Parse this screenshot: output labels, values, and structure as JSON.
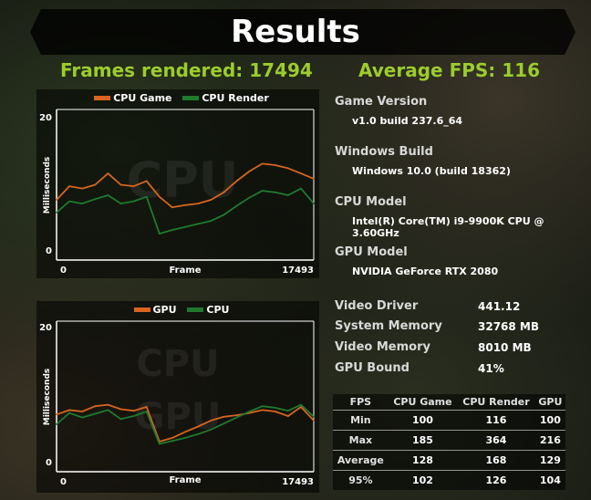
{
  "title": "Results",
  "headline": {
    "frames_rendered": "Frames rendered: 17494",
    "average_fps": "Average FPS: 116"
  },
  "charts": {
    "top": {
      "legend": [
        {
          "label": "CPU Game",
          "color": "#d8641e"
        },
        {
          "label": "CPU Render",
          "color": "#1f7a2e"
        }
      ],
      "watermark": "CPU",
      "ylabel": "Milliseconds",
      "xlabel": "Frame",
      "y_top": "20",
      "y_bottom": "0",
      "x_start": "0",
      "x_end": "17493"
    },
    "bottom": {
      "legend": [
        {
          "label": "GPU",
          "color": "#d8641e"
        },
        {
          "label": "CPU",
          "color": "#1f7a2e"
        }
      ],
      "watermark_1": "CPU",
      "watermark_2": "GPU",
      "ylabel": "Milliseconds",
      "xlabel": "Frame",
      "y_top": "20",
      "y_bottom": "0",
      "x_start": "0",
      "x_end": "17493"
    }
  },
  "chart_data": [
    {
      "type": "line",
      "ylabel": "Milliseconds",
      "xlabel": "Frame",
      "ylim": [
        0,
        20
      ],
      "xlim": [
        0,
        17493
      ],
      "series": [
        {
          "name": "CPU Game",
          "color": "#d8641e",
          "x": [
            0,
            875,
            1750,
            2625,
            3500,
            4375,
            5250,
            6125,
            7000,
            7875,
            8750,
            9625,
            10500,
            11375,
            12250,
            13125,
            14000,
            14875,
            15750,
            16625,
            17493
          ],
          "values": [
            8.0,
            9.8,
            9.5,
            10.0,
            11.5,
            10.0,
            9.8,
            10.5,
            8.4,
            7.0,
            7.3,
            7.5,
            8.0,
            9.0,
            10.5,
            11.8,
            12.8,
            12.6,
            12.2,
            11.5,
            10.8
          ]
        },
        {
          "name": "CPU Render",
          "color": "#1f7a2e",
          "x": [
            0,
            875,
            1750,
            2625,
            3500,
            4375,
            5250,
            6125,
            7000,
            7875,
            8750,
            9625,
            10500,
            11375,
            12250,
            13125,
            14000,
            14875,
            15750,
            16625,
            17493
          ],
          "values": [
            6.3,
            7.8,
            7.5,
            8.1,
            8.6,
            7.5,
            7.8,
            8.4,
            3.5,
            4.0,
            4.4,
            4.8,
            5.2,
            6.0,
            7.2,
            8.3,
            9.2,
            9.0,
            8.6,
            9.5,
            7.5
          ]
        }
      ]
    },
    {
      "type": "line",
      "ylabel": "Milliseconds",
      "xlabel": "Frame",
      "ylim": [
        0,
        20
      ],
      "xlim": [
        0,
        17493
      ],
      "series": [
        {
          "name": "GPU",
          "color": "#d8641e",
          "x": [
            0,
            875,
            1750,
            2625,
            3500,
            4375,
            5250,
            6125,
            7000,
            7875,
            8750,
            9625,
            10500,
            11375,
            12250,
            13125,
            14000,
            14875,
            15750,
            16625,
            17493
          ],
          "values": [
            7.6,
            8.2,
            8.0,
            8.7,
            8.9,
            8.3,
            8.1,
            8.6,
            4.0,
            4.5,
            5.3,
            6.0,
            6.8,
            7.3,
            7.5,
            7.8,
            8.2,
            8.0,
            7.4,
            8.6,
            6.8
          ]
        },
        {
          "name": "CPU",
          "color": "#1f7a2e",
          "x": [
            0,
            875,
            1750,
            2625,
            3500,
            4375,
            5250,
            6125,
            7000,
            7875,
            8750,
            9625,
            10500,
            11375,
            12250,
            13125,
            14000,
            14875,
            15750,
            16625,
            17493
          ],
          "values": [
            6.3,
            7.8,
            7.2,
            7.7,
            8.2,
            7.0,
            7.4,
            8.0,
            3.7,
            4.1,
            4.5,
            5.0,
            5.6,
            6.4,
            7.2,
            8.0,
            8.7,
            8.5,
            8.1,
            8.9,
            7.3
          ]
        }
      ]
    }
  ],
  "info": {
    "game_version_label": "Game Version",
    "game_version_value": "v1.0 build 237.6_64",
    "windows_build_label": "Windows Build",
    "windows_build_value": "Windows 10.0 (build 18362)",
    "cpu_model_label": "CPU Model",
    "cpu_model_value": "Intel(R) Core(TM) i9-9900K CPU @ 3.60GHz",
    "gpu_model_label": "GPU Model",
    "gpu_model_value": "NVIDIA GeForce RTX 2080"
  },
  "stats": {
    "video_driver_label": "Video Driver",
    "video_driver_value": "441.12",
    "system_memory_label": "System Memory",
    "system_memory_value": "32768 MB",
    "video_memory_label": "Video Memory",
    "video_memory_value": "8010 MB",
    "gpu_bound_label": "GPU Bound",
    "gpu_bound_value": "41%"
  },
  "fps_table": {
    "headers": [
      "FPS",
      "CPU Game",
      "CPU Render",
      "GPU"
    ],
    "rows": [
      [
        "Min",
        "100",
        "116",
        "100"
      ],
      [
        "Max",
        "185",
        "364",
        "216"
      ],
      [
        "Average",
        "128",
        "168",
        "129"
      ],
      [
        "95%",
        "102",
        "126",
        "104"
      ]
    ]
  }
}
